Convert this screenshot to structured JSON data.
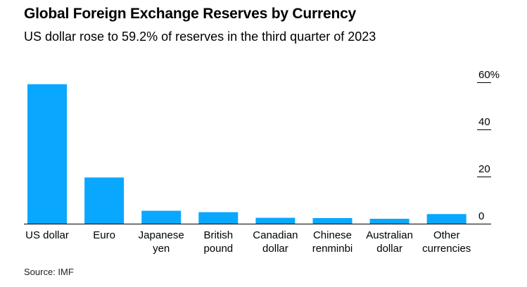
{
  "title": "Global Foreign Exchange Reserves by Currency",
  "subtitle": "US dollar rose to 59.2% of reserves in the third quarter of 2023",
  "source": "Source: IMF",
  "colors": {
    "bar": "#0aa7ff",
    "axis": "#000000",
    "tick": "#000000"
  },
  "chart_data": {
    "type": "bar",
    "categories": [
      "US dollar",
      "Euro",
      "Japanese yen",
      "British pound",
      "Canadian dollar",
      "Chinese renminbi",
      "Australian dollar",
      "Other currencies"
    ],
    "category_label_lines": [
      [
        "US dollar"
      ],
      [
        "Euro"
      ],
      [
        "Japanese",
        "yen"
      ],
      [
        "British",
        "pound"
      ],
      [
        "Canadian",
        "dollar"
      ],
      [
        "Chinese",
        "renminbi"
      ],
      [
        "Australian",
        "dollar"
      ],
      [
        "Other",
        "currencies"
      ]
    ],
    "values": [
      59.2,
      19.6,
      5.5,
      4.9,
      2.5,
      2.4,
      2.1,
      4.1
    ],
    "yticks": [
      0,
      20,
      40,
      60
    ],
    "ytick_labels": [
      "0",
      "20",
      "40",
      "60%"
    ],
    "ylim": [
      0,
      60
    ],
    "y_axis_position": "right",
    "grid": false,
    "title": "Global Foreign Exchange Reserves by Currency",
    "xlabel": "",
    "ylabel": ""
  }
}
